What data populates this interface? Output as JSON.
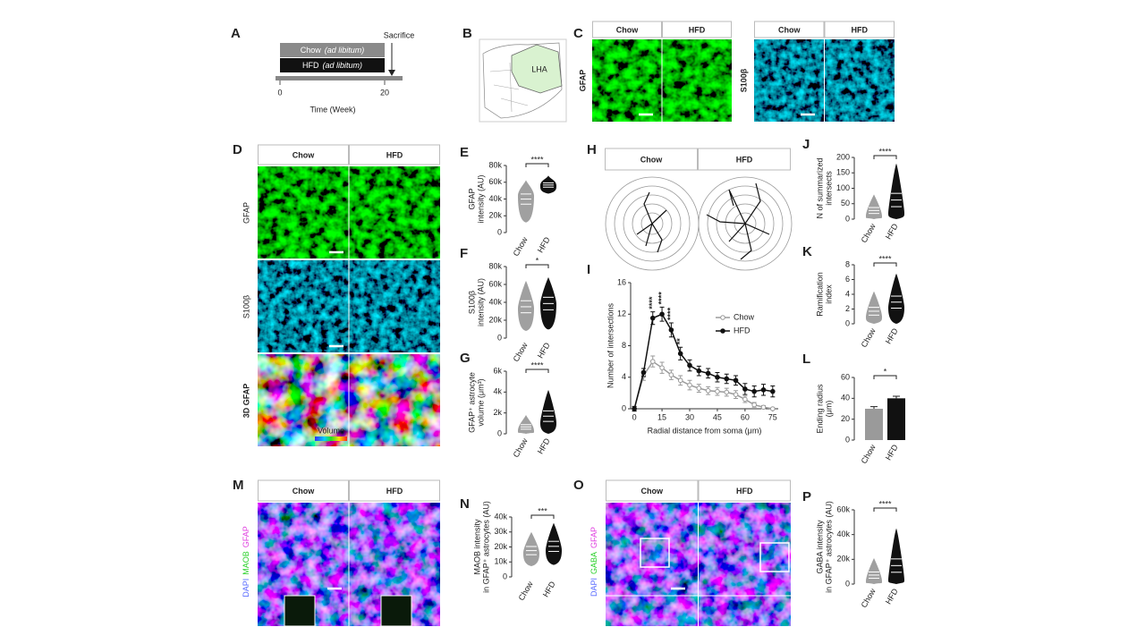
{
  "figure": {
    "panels": {
      "A": {
        "label": "A",
        "bars": [
          {
            "name": "Chow",
            "note": "(ad libitum)"
          },
          {
            "name": "HFD",
            "note": "(ad libitum)"
          }
        ],
        "event": "Sacrifice",
        "xticks": [
          0,
          20
        ],
        "xlabel": "Time (Week)"
      },
      "B": {
        "label": "B",
        "region": "LHA"
      },
      "C": {
        "label": "C",
        "groups": [
          "Chow",
          "HFD"
        ],
        "stains": [
          "GFAP",
          "S100β"
        ]
      },
      "D": {
        "label": "D",
        "groups": [
          "Chow",
          "HFD"
        ],
        "rows": [
          "GFAP",
          "S100β",
          "3D GFAP"
        ],
        "colorbar": "Volume"
      },
      "E": {
        "label": "E",
        "ylabel": [
          "GFAP",
          "intensity (AU)"
        ],
        "categories": [
          "Chow",
          "HFD"
        ],
        "ylim": [
          0,
          80000
        ],
        "yticks": [
          0,
          {
            "value": 20000,
            "label": "20k"
          },
          {
            "value": 40000,
            "label": "40k"
          },
          {
            "value": 60000,
            "label": "60k"
          },
          {
            "value": 80000,
            "label": "80k"
          }
        ],
        "significance": "****"
      },
      "F": {
        "label": "F",
        "ylabel": [
          "S100β",
          "intensity (AU)"
        ],
        "categories": [
          "Chow",
          "HFD"
        ],
        "ylim": [
          0,
          80000
        ],
        "yticks": [
          0,
          {
            "value": 20000,
            "label": "20k"
          },
          {
            "value": 40000,
            "label": "40k"
          },
          {
            "value": 60000,
            "label": "60k"
          },
          {
            "value": 80000,
            "label": "80k"
          }
        ],
        "significance": "*"
      },
      "G": {
        "label": "G",
        "ylabel": [
          "GFAP⁺ astrocyte",
          "volume (μm³)"
        ],
        "categories": [
          "Chow",
          "HFD"
        ],
        "ylim": [
          0,
          6000
        ],
        "yticks": [
          0,
          {
            "value": 2000,
            "label": "2k"
          },
          {
            "value": 4000,
            "label": "4k"
          },
          {
            "value": 6000,
            "label": "6k"
          }
        ],
        "significance": "****"
      },
      "H": {
        "label": "H",
        "groups": [
          "Chow",
          "HFD"
        ]
      },
      "I": {
        "label": "I",
        "type": "line",
        "xlabel": "Radial distance from soma (μm)",
        "ylabel": "Number of intersections",
        "x": [
          0,
          5,
          10,
          15,
          20,
          25,
          30,
          35,
          40,
          45,
          50,
          55,
          60,
          65,
          70,
          75
        ],
        "xlim": [
          -2,
          78
        ],
        "xticks": [
          0,
          15,
          30,
          45,
          60,
          75
        ],
        "ylim": [
          0,
          16
        ],
        "yticks": [
          0,
          4,
          8,
          12,
          16
        ],
        "series": [
          {
            "name": "Chow",
            "color": "#9a9a9a",
            "values": [
              0,
              4.2,
              6,
              5.2,
              4.3,
              3.6,
              3,
              2.6,
              2.3,
              2.2,
              2.1,
              1.8,
              1.2,
              0.5,
              0.2,
              0
            ],
            "errors": [
              0.3,
              0.6,
              0.7,
              0.7,
              0.6,
              0.6,
              0.6,
              0.5,
              0.5,
              0.5,
              0.5,
              0.5,
              0.4,
              0.3,
              0.2,
              0.1
            ]
          },
          {
            "name": "HFD",
            "color": "#111111",
            "values": [
              0,
              4.6,
              11.5,
              12,
              10,
              7,
              5.5,
              4.8,
              4.5,
              4,
              3.8,
              3.6,
              2.5,
              2.2,
              2.4,
              2.2
            ],
            "errors": [
              0.3,
              0.5,
              0.8,
              0.9,
              0.9,
              0.8,
              0.7,
              0.6,
              0.6,
              0.6,
              0.6,
              0.6,
              0.7,
              0.7,
              0.7,
              0.7
            ]
          }
        ],
        "annotations": [
          {
            "x": 10,
            "text": "****"
          },
          {
            "x": 15,
            "text": "****"
          },
          {
            "x": 20,
            "text": "****"
          },
          {
            "x": 25,
            "text": "**"
          }
        ]
      },
      "J": {
        "label": "J",
        "ylabel": [
          "N of summarized",
          "intersects"
        ],
        "categories": [
          "Chow",
          "HFD"
        ],
        "ylim": [
          0,
          200
        ],
        "yticks": [
          0,
          50,
          100,
          150,
          200
        ],
        "significance": "****"
      },
      "K": {
        "label": "K",
        "ylabel": [
          "Ramification",
          "index"
        ],
        "categories": [
          "Chow",
          "HFD"
        ],
        "ylim": [
          0,
          8
        ],
        "yticks": [
          0,
          2,
          4,
          6,
          8
        ],
        "significance": "****"
      },
      "L": {
        "label": "L",
        "type": "bar",
        "ylabel": [
          "Ending radius",
          "(μm)"
        ],
        "categories": [
          "Chow",
          "HFD"
        ],
        "colors": [
          "#9a9a9a",
          "#111111"
        ],
        "values": [
          30,
          40
        ],
        "errors": [
          2,
          2
        ],
        "ylim": [
          0,
          60
        ],
        "yticks": [
          0,
          20,
          40,
          60
        ],
        "significance": "*"
      },
      "M": {
        "label": "M",
        "groups": [
          "Chow",
          "HFD"
        ],
        "stains": [
          "DAPI",
          "MAOB",
          "GFAP"
        ]
      },
      "N": {
        "label": "N",
        "ylabel": [
          "MAOB intensity",
          "in GFAP⁺ astrocytes (AU)"
        ],
        "categories": [
          "Chow",
          "HFD"
        ],
        "ylim": [
          0,
          40000
        ],
        "yticks": [
          0,
          {
            "value": 10000,
            "label": "10k"
          },
          {
            "value": 20000,
            "label": "20k"
          },
          {
            "value": 30000,
            "label": "30k"
          },
          {
            "value": 40000,
            "label": "40k"
          }
        ],
        "significance": "***"
      },
      "O": {
        "label": "O",
        "groups": [
          "Chow",
          "HFD"
        ],
        "stains": [
          "DAPI",
          "GABA",
          "GFAP"
        ]
      },
      "P": {
        "label": "P",
        "ylabel": [
          "GABA intensity",
          "in GFAP⁺ astrocytes (AU)"
        ],
        "categories": [
          "Chow",
          "HFD"
        ],
        "ylim": [
          0,
          60000
        ],
        "yticks": [
          0,
          {
            "value": 20000,
            "label": "20k"
          },
          {
            "value": 40000,
            "label": "40k"
          },
          {
            "value": 60000,
            "label": "60k"
          }
        ],
        "significance": "****"
      }
    }
  }
}
